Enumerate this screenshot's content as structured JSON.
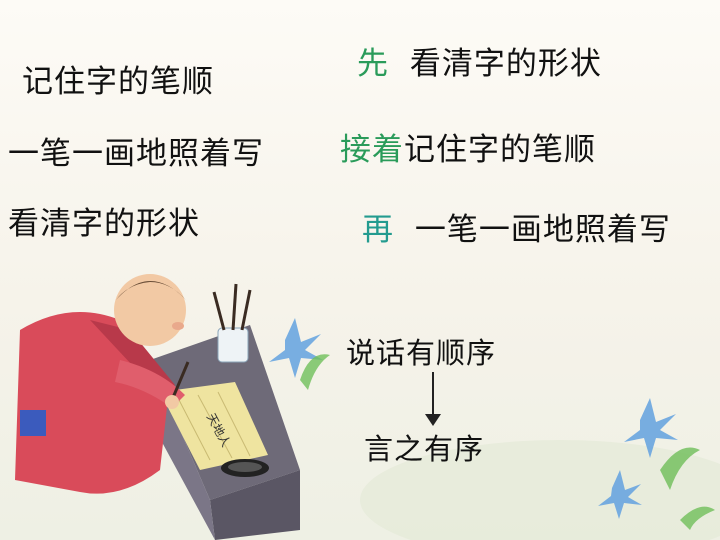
{
  "left_column": {
    "line1": "记住字的笔顺",
    "line2": "一笔一画地照着写",
    "line3": "看清字的形状"
  },
  "right_column": {
    "row1": {
      "marker": "先",
      "text": "看清字的形状"
    },
    "row2": {
      "marker": "接着",
      "text": "记住字的笔顺"
    },
    "row3": {
      "marker": "再",
      "text": "一笔一画地照着写"
    }
  },
  "flow": {
    "top": "说话有顺序",
    "bottom": "言之有序"
  },
  "illustration": {
    "scroll_text": "天地人"
  },
  "colors": {
    "marker_green": "#2a9b5a",
    "marker_teal": "#239b8f",
    "robe_red": "#d94b5a"
  }
}
